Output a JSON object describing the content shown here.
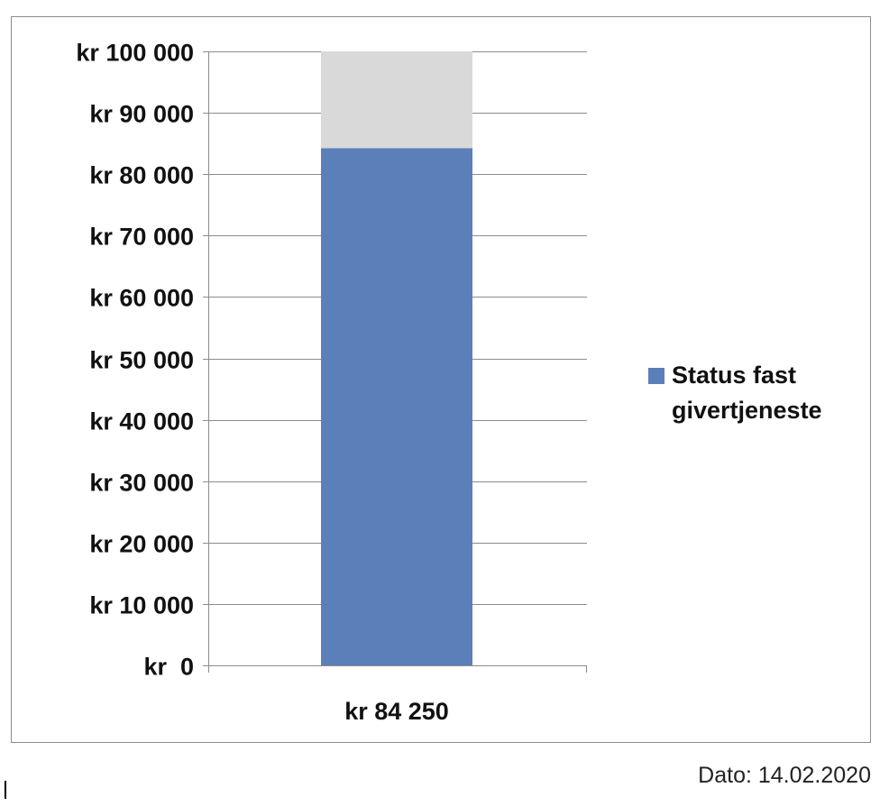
{
  "chart_data": {
    "type": "bar",
    "stacked": true,
    "categories": [
      "kr 84 250"
    ],
    "series": [
      {
        "name": "Status fast givertjeneste",
        "values": [
          84250
        ],
        "color": "#5b7fb9"
      },
      {
        "values": [
          15750
        ],
        "color": "#d9d9d9"
      }
    ],
    "ylim": [
      0,
      100000
    ],
    "yticks": [
      0,
      10000,
      20000,
      30000,
      40000,
      50000,
      60000,
      70000,
      80000,
      90000,
      100000
    ],
    "ytick_labels": [
      "kr  0",
      "kr 10 000",
      "kr 20 000",
      "kr 30 000",
      "kr 40 000",
      "kr 50 000",
      "kr 60 000",
      "kr 70 000",
      "kr 80 000",
      "kr 90 000",
      "kr 100 000"
    ],
    "grid": true,
    "legend_position": "right",
    "title": "",
    "xlabel": "",
    "ylabel": ""
  },
  "footer": {
    "date_text": "Dato: 14.02.2020"
  },
  "colors": {
    "gridline": "#8c8c8c",
    "axis": "#8c8c8c"
  }
}
